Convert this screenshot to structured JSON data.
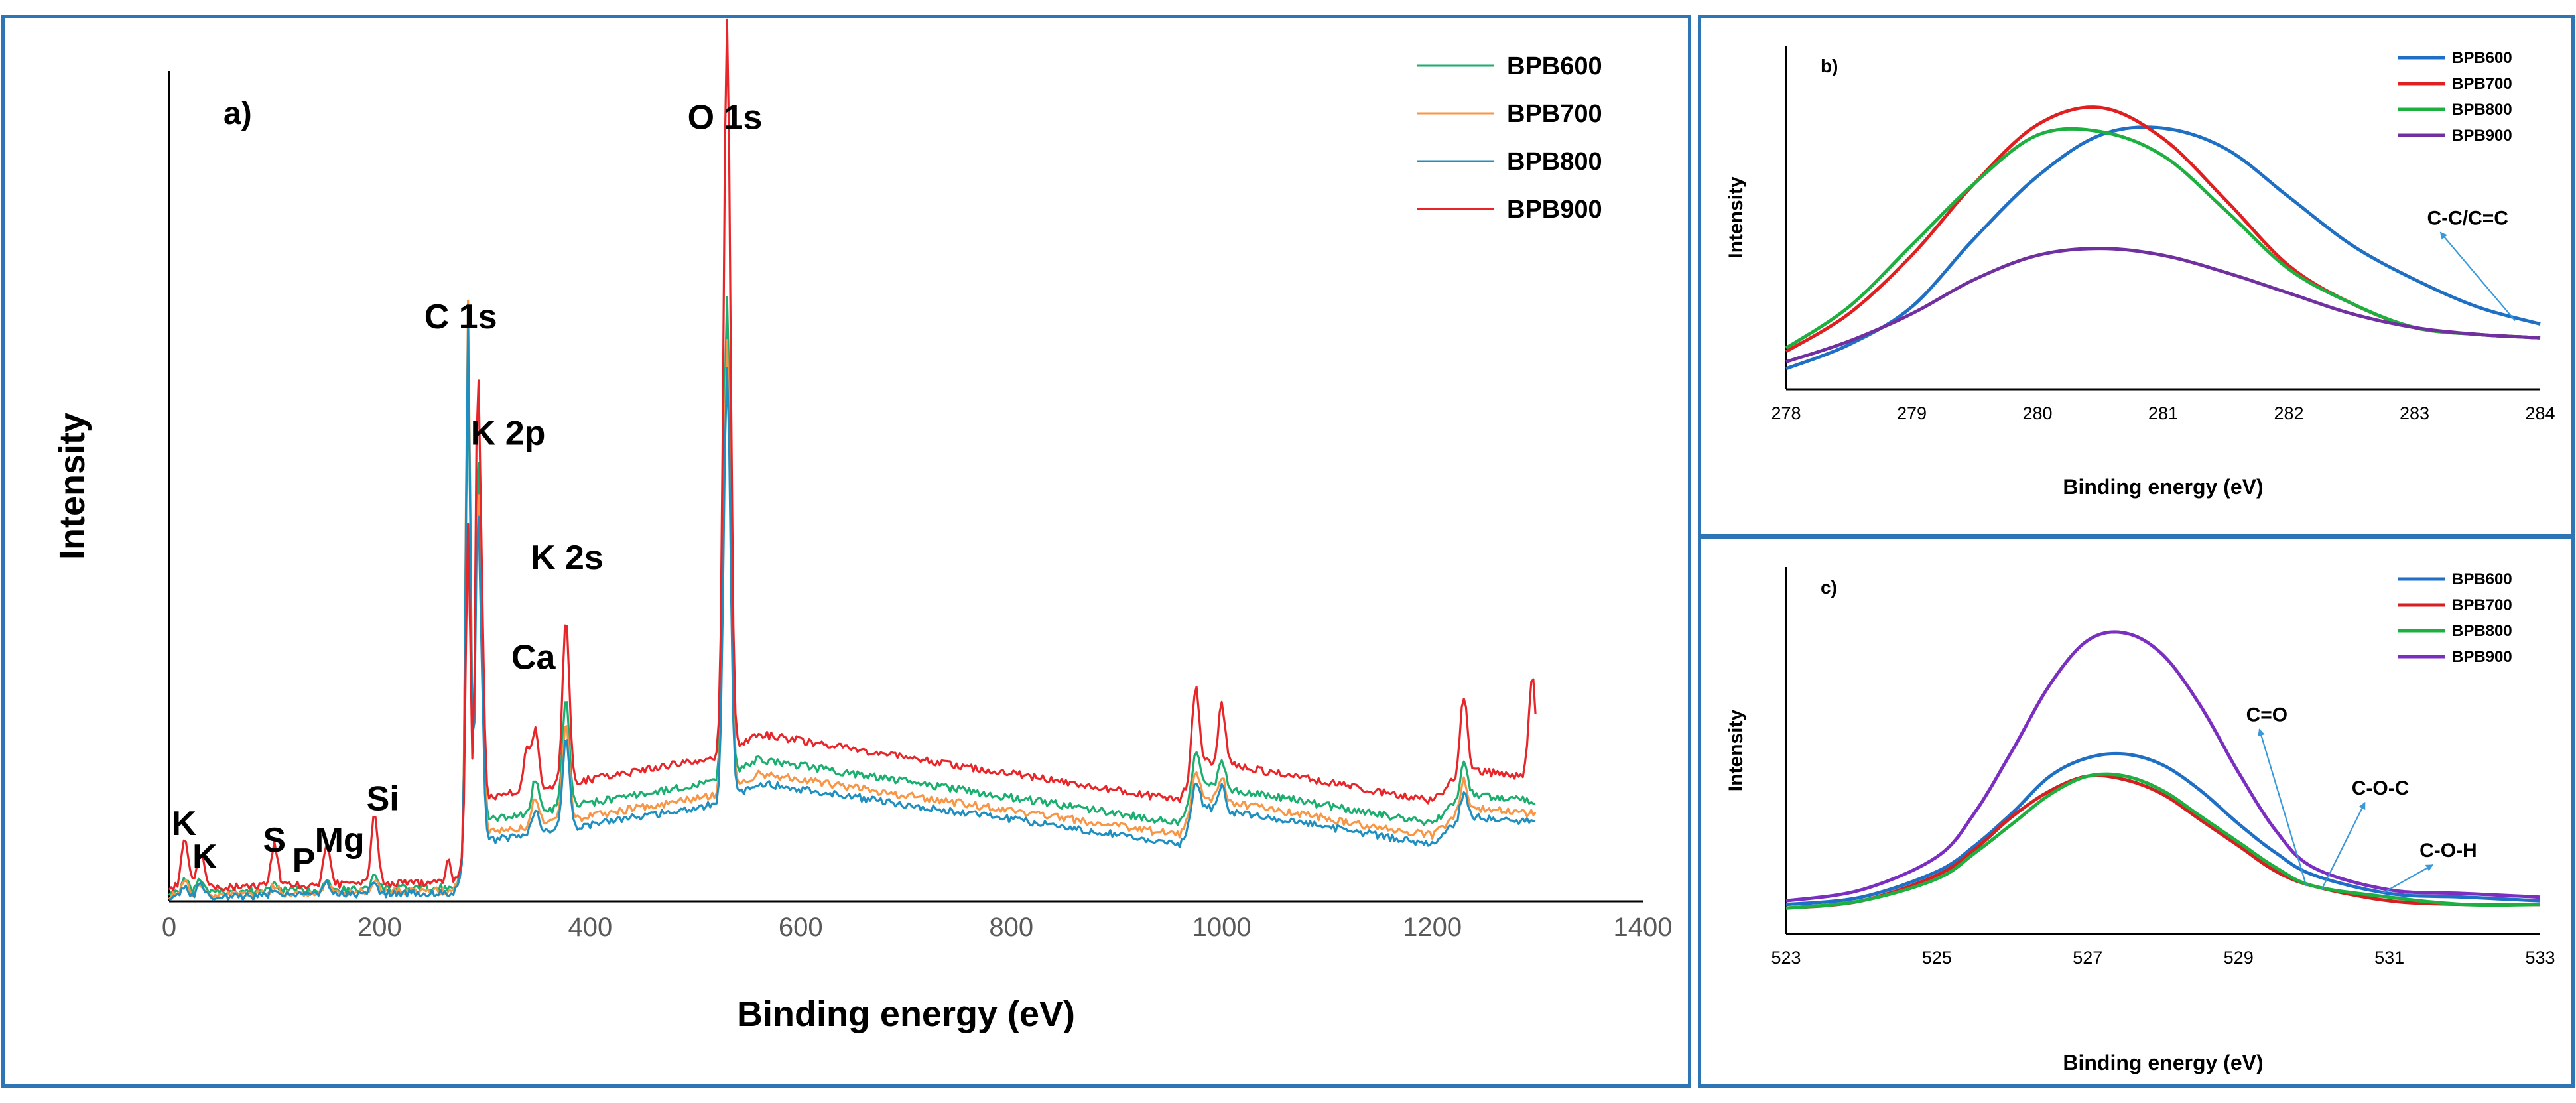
{
  "chart_data": [
    {
      "id": "a",
      "type": "line",
      "panel_label": "a)",
      "title": "",
      "xlabel": "Binding energy (eV)",
      "ylabel": "Intensity",
      "xlim": [
        0,
        1400
      ],
      "ylim": [
        0,
        100
      ],
      "x_ticks": [
        0,
        200,
        400,
        600,
        800,
        1000,
        1200,
        1400
      ],
      "legend": [
        "BPB600",
        "BPB700",
        "BPB800",
        "BPB900"
      ],
      "series": [
        {
          "name": "BPB600",
          "color": "#1AAE6F",
          "offset": 2.2,
          "scale": 0.55,
          "peaks": [
            [
              15,
              1.5
            ],
            [
              30,
              1.5
            ],
            [
              100,
              1
            ],
            [
              150,
              1.3
            ],
            [
              195,
              1.5
            ],
            [
              284,
              62
            ],
            [
              293,
              42
            ],
            [
              297,
              17
            ],
            [
              348,
              4
            ],
            [
              377,
              13
            ],
            [
              530,
              58
            ],
            [
              975,
              5
            ],
            [
              1000,
              3.5
            ],
            [
              1230,
              4
            ]
          ]
        },
        {
          "name": "BPB700",
          "color": "#F79646",
          "offset": 0.9,
          "scale": 0.45,
          "peaks": [
            [
              15,
              1.5
            ],
            [
              30,
              1.5
            ],
            [
              100,
              1
            ],
            [
              150,
              1.3
            ],
            [
              195,
              1.5
            ],
            [
              284,
              68
            ],
            [
              293,
              40
            ],
            [
              297,
              16
            ],
            [
              348,
              3.5
            ],
            [
              377,
              12
            ],
            [
              530,
              54
            ],
            [
              975,
              4.5
            ],
            [
              1000,
              3
            ],
            [
              1230,
              3.5
            ]
          ]
        },
        {
          "name": "BPB800",
          "color": "#1F8FBF",
          "offset": 0.0,
          "scale": 0.4,
          "peaks": [
            [
              15,
              1.5
            ],
            [
              30,
              1.5
            ],
            [
              100,
              1
            ],
            [
              150,
              1.3
            ],
            [
              195,
              1.5
            ],
            [
              284,
              65
            ],
            [
              293,
              38
            ],
            [
              297,
              15
            ],
            [
              348,
              3
            ],
            [
              377,
              11
            ],
            [
              530,
              52
            ],
            [
              975,
              4
            ],
            [
              1000,
              3
            ],
            [
              1230,
              3
            ]
          ]
        },
        {
          "name": "BPB900",
          "color": "#E8262A",
          "offset": 4.6,
          "scale": 0.7,
          "peaks": [
            [
              15,
              6
            ],
            [
              30,
              4
            ],
            [
              100,
              5
            ],
            [
              150,
              5
            ],
            [
              195,
              8
            ],
            [
              265,
              3
            ],
            [
              284,
              40
            ],
            [
              293,
              48
            ],
            [
              297,
              20
            ],
            [
              340,
              5
            ],
            [
              348,
              7
            ],
            [
              377,
              20
            ],
            [
              530,
              88
            ],
            [
              975,
              10
            ],
            [
              1000,
              7
            ],
            [
              1230,
              9
            ],
            [
              1295,
              12
            ]
          ]
        }
      ],
      "annotations": [
        {
          "text": "K",
          "x": 14,
          "y": 8
        },
        {
          "text": "K",
          "x": 34,
          "y": 4
        },
        {
          "text": "S",
          "x": 100,
          "y": 6
        },
        {
          "text": "P",
          "x": 128,
          "y": 3.5
        },
        {
          "text": "Mg",
          "x": 162,
          "y": 6
        },
        {
          "text": "Si",
          "x": 203,
          "y": 11
        },
        {
          "text": "C 1s",
          "x": 277,
          "y": 69
        },
        {
          "text": "K 2p",
          "x": 322,
          "y": 55
        },
        {
          "text": "K 2s",
          "x": 378,
          "y": 40
        },
        {
          "text": "Ca",
          "x": 346,
          "y": 28
        },
        {
          "text": "O 1s",
          "x": 528,
          "y": 93
        }
      ]
    },
    {
      "id": "b",
      "type": "line",
      "panel_label": "b)",
      "xlabel": "Binding energy (eV)",
      "ylabel": "Intensity",
      "xlim": [
        278,
        284
      ],
      "ylim": [
        0,
        100
      ],
      "x_ticks": [
        278,
        279,
        280,
        281,
        282,
        283,
        284
      ],
      "legend": [
        "BPB600",
        "BPB700",
        "BPB800",
        "BPB900"
      ],
      "series": [
        {
          "name": "BPB600",
          "color": "#1F6FC4",
          "x": [
            278,
            278.5,
            279,
            279.5,
            280,
            280.5,
            281,
            281.5,
            282,
            282.5,
            283,
            283.5,
            284
          ],
          "y": [
            6,
            13,
            24,
            44,
            62,
            74,
            76,
            70,
            56,
            42,
            32,
            24,
            19
          ]
        },
        {
          "name": "BPB700",
          "color": "#E02020",
          "x": [
            278,
            278.5,
            279,
            279.5,
            280,
            280.5,
            281,
            281.5,
            282,
            282.5,
            283,
            283.5,
            284
          ],
          "y": [
            11,
            22,
            39,
            60,
            77,
            82,
            73,
            55,
            36,
            25,
            18,
            16,
            15
          ]
        },
        {
          "name": "BPB800",
          "color": "#1DB040",
          "x": [
            278,
            278.5,
            279,
            279.5,
            280,
            280.5,
            281,
            281.5,
            282,
            282.5,
            283,
            283.5,
            284
          ],
          "y": [
            12,
            24,
            42,
            60,
            74,
            75,
            68,
            52,
            35,
            25,
            18,
            16,
            15
          ]
        },
        {
          "name": "BPB900",
          "color": "#7030A0",
          "x": [
            278,
            278.5,
            279,
            279.5,
            280,
            280.5,
            281,
            281.5,
            282,
            282.5,
            283,
            283.5,
            284
          ],
          "y": [
            8,
            14,
            22,
            32,
            39,
            41,
            39,
            34,
            28,
            22,
            18,
            16,
            15
          ]
        }
      ],
      "annotations": [
        {
          "text": "C-C/C=C",
          "x": 283.1,
          "y": 48,
          "arrow_to": [
            283.8,
            20
          ]
        }
      ]
    },
    {
      "id": "c",
      "type": "line",
      "panel_label": "c)",
      "xlabel": "Binding energy (eV)",
      "ylabel": "Intensity",
      "xlim": [
        523,
        533
      ],
      "ylim": [
        0,
        100
      ],
      "x_ticks": [
        523,
        525,
        527,
        529,
        531,
        533
      ],
      "legend": [
        "BPB600",
        "BPB700",
        "BPB800",
        "BPB900"
      ],
      "series": [
        {
          "name": "BPB600",
          "color": "#1F6FC4",
          "x": [
            523,
            524,
            525,
            525.5,
            526,
            526.5,
            527,
            527.5,
            528,
            528.5,
            529,
            529.5,
            530,
            531,
            532,
            533
          ],
          "y": [
            8,
            10,
            17,
            24,
            33,
            43,
            48,
            49,
            46,
            39,
            30,
            22,
            16,
            11,
            10,
            9
          ]
        },
        {
          "name": "BPB700",
          "color": "#D42020",
          "x": [
            523,
            524,
            525,
            525.5,
            526,
            526.5,
            527,
            527.5,
            528,
            528.5,
            529,
            529.5,
            530,
            531,
            532,
            533
          ],
          "y": [
            7,
            9,
            16,
            23,
            32,
            39,
            43,
            42,
            38,
            31,
            24,
            17,
            13,
            9,
            8,
            8
          ]
        },
        {
          "name": "BPB800",
          "color": "#1DB040",
          "x": [
            523,
            524,
            525,
            525.5,
            526,
            526.5,
            527,
            527.5,
            528,
            528.5,
            529,
            529.5,
            530,
            531,
            532,
            533
          ],
          "y": [
            7,
            9,
            15,
            22,
            30,
            38,
            43,
            43,
            39,
            32,
            25,
            18,
            13,
            10,
            8,
            8
          ]
        },
        {
          "name": "BPB900",
          "color": "#7A2FC0",
          "x": [
            523,
            524,
            525,
            525.5,
            526,
            526.5,
            527,
            527.5,
            528,
            528.5,
            529,
            529.5,
            530,
            531,
            532,
            533
          ],
          "y": [
            9,
            12,
            21,
            33,
            50,
            68,
            80,
            82,
            76,
            62,
            44,
            28,
            18,
            12,
            11,
            10
          ]
        }
      ],
      "annotations": [
        {
          "text": "C=O",
          "x": 529.1,
          "y": 58,
          "arrow_to": [
            529.9,
            13
          ]
        },
        {
          "text": "C-O-C",
          "x": 530.5,
          "y": 38,
          "arrow_to": [
            530.1,
            12
          ]
        },
        {
          "text": "C-O-H",
          "x": 531.4,
          "y": 21,
          "arrow_to": [
            530.9,
            11
          ]
        }
      ]
    }
  ]
}
